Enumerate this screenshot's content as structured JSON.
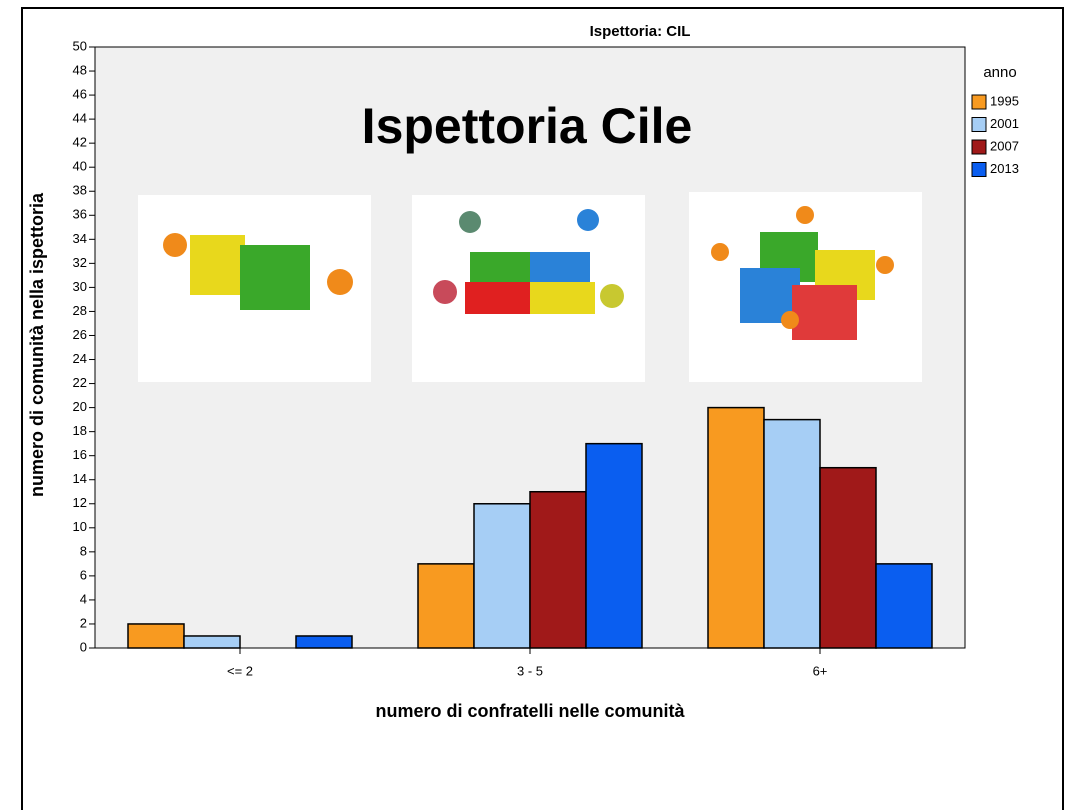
{
  "chart_data": {
    "type": "bar",
    "title": "Ispettoria: CIL",
    "overlay_title": "Ispettoria Cile",
    "x_label": "numero di confratelli nelle comunità",
    "y_label": "numero di comunità nella ispettoria",
    "legend_title": "anno",
    "legend_position": "right",
    "categories": [
      "<= 2",
      "3 - 5",
      "6+"
    ],
    "series": [
      {
        "name": "1995",
        "color": "#f89a20",
        "values": [
          2,
          7,
          20
        ]
      },
      {
        "name": "2001",
        "color": "#a6cef5",
        "values": [
          1,
          12,
          19
        ]
      },
      {
        "name": "2007",
        "color": "#a01919",
        "values": [
          0,
          13,
          15
        ]
      },
      {
        "name": "2013",
        "color": "#0a5ef0",
        "values": [
          1,
          17,
          7
        ]
      }
    ],
    "ylim": [
      0,
      50
    ],
    "yticks": [
      0,
      2,
      4,
      6,
      8,
      10,
      12,
      14,
      16,
      18,
      20,
      22,
      24,
      26,
      28,
      30,
      32,
      34,
      36,
      38,
      40,
      42,
      44,
      46,
      48,
      50
    ]
  }
}
